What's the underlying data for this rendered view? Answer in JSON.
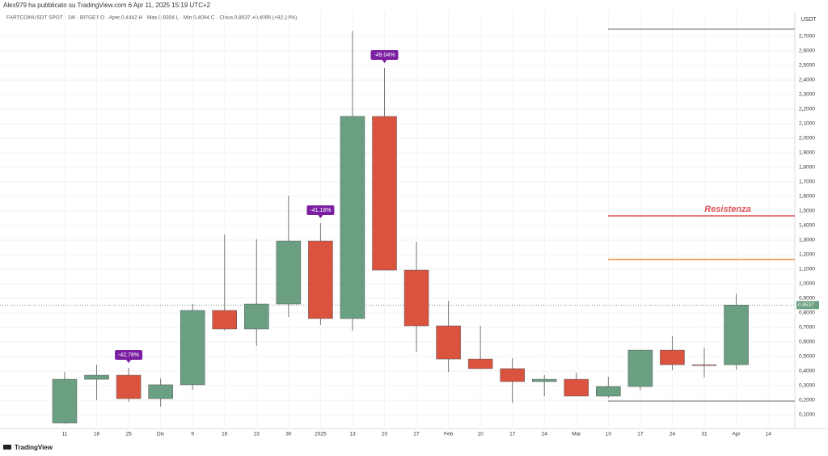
{
  "header": {
    "author_line": "Alex979 ha pubblicato su TradingView.com 6 Apr 11, 2025 15:19 UTC+2",
    "symbol_line": "FARTCOINUSDT SPOT · 1W · BITGET  O · Aper.0,4442  H · Max.0,9304  L · Min.0,4094  C · Chius.0,8537  +0,4095 (+92,19%)"
  },
  "footer": {
    "brand": "TradingView"
  },
  "chart_data": {
    "type": "candlestick",
    "y_axis_label": "USDT",
    "categories": [
      "11",
      "18",
      "25",
      "Dic",
      "9",
      "16",
      "23",
      "30",
      "2025",
      "13",
      "20",
      "27",
      "Feb",
      "10",
      "17",
      "24",
      "Mar",
      "10",
      "17",
      "24",
      "31",
      "Apr",
      "14"
    ],
    "open": [
      0.044,
      0.344,
      0.372,
      0.211,
      0.306,
      0.817,
      0.689,
      0.861,
      1.294,
      0.761,
      2.15,
      1.094,
      0.711,
      0.483,
      0.417,
      0.328,
      0.344,
      0.228,
      0.294,
      0.544,
      0.444,
      0.4442,
      null
    ],
    "high": [
      0.394,
      0.444,
      0.422,
      0.35,
      0.861,
      1.339,
      1.306,
      1.606,
      1.417,
      2.739,
      2.483,
      1.289,
      0.883,
      0.711,
      0.489,
      0.372,
      0.389,
      0.361,
      0.544,
      0.639,
      0.561,
      0.9304,
      null
    ],
    "low": [
      0.04,
      0.2,
      0.189,
      0.156,
      0.272,
      0.68,
      0.572,
      0.772,
      0.717,
      0.678,
      1.094,
      0.533,
      0.394,
      0.417,
      0.183,
      0.228,
      0.228,
      0.217,
      0.267,
      0.406,
      0.356,
      0.4094,
      null
    ],
    "close": [
      0.344,
      0.372,
      0.211,
      0.306,
      0.817,
      0.689,
      0.861,
      1.294,
      0.761,
      2.15,
      1.094,
      0.711,
      0.483,
      0.417,
      0.328,
      0.344,
      0.228,
      0.294,
      0.544,
      0.444,
      0.439,
      0.8537,
      null
    ],
    "up_color": "#6a9f82",
    "down_color": "#d9533f",
    "annotations": [
      null,
      null,
      "-42.78%",
      null,
      null,
      null,
      null,
      null,
      "-41.18%",
      null,
      "-49.04%",
      null,
      null,
      null,
      null,
      null,
      null,
      null,
      null,
      null,
      null,
      null,
      null
    ],
    "annotation_color": "#7b1fa2",
    "horizontal_lines": [
      {
        "value": 2.75,
        "color": "#9e9e9e"
      },
      {
        "value": 1.467,
        "color": "#e0505a",
        "label": "Resistenza"
      },
      {
        "value": 1.167,
        "color": "#f08c3c"
      },
      {
        "value": 0.194,
        "color": "#9e9e9e"
      }
    ],
    "last_price": {
      "value": 0.8537,
      "label": "0,8537"
    },
    "ylim": [
      0,
      2.8
    ],
    "yticks": [
      {
        "value": 0.1,
        "label": "0,1000"
      },
      {
        "value": 0.2,
        "label": "0,2000"
      },
      {
        "value": 0.3,
        "label": "0,3000"
      },
      {
        "value": 0.4,
        "label": "0,4000"
      },
      {
        "value": 0.5,
        "label": "0,5000"
      },
      {
        "value": 0.6,
        "label": "0,6000"
      },
      {
        "value": 0.7,
        "label": "0,7000"
      },
      {
        "value": 0.8,
        "label": "0,8000"
      },
      {
        "value": 0.9,
        "label": "0,9000"
      },
      {
        "value": 1.0,
        "label": "1,0000"
      },
      {
        "value": 1.1,
        "label": "1,1000"
      },
      {
        "value": 1.2,
        "label": "1,2000"
      },
      {
        "value": 1.3,
        "label": "1,3000"
      },
      {
        "value": 1.4,
        "label": "1,4000"
      },
      {
        "value": 1.5,
        "label": "1,5000"
      },
      {
        "value": 1.6,
        "label": "1,6000"
      },
      {
        "value": 1.7,
        "label": "1,7000"
      },
      {
        "value": 1.8,
        "label": "1,8000"
      },
      {
        "value": 1.9,
        "label": "1,9000"
      },
      {
        "value": 2.0,
        "label": "2,0000"
      },
      {
        "value": 2.1,
        "label": "2,1000"
      },
      {
        "value": 2.2,
        "label": "2,2000"
      },
      {
        "value": 2.3,
        "label": "2,3000"
      },
      {
        "value": 2.4,
        "label": "2,4000"
      },
      {
        "value": 2.5,
        "label": "2,5000"
      },
      {
        "value": 2.6,
        "label": "2,6000"
      },
      {
        "value": 2.7,
        "label": "2,7000"
      }
    ],
    "grid": true
  }
}
